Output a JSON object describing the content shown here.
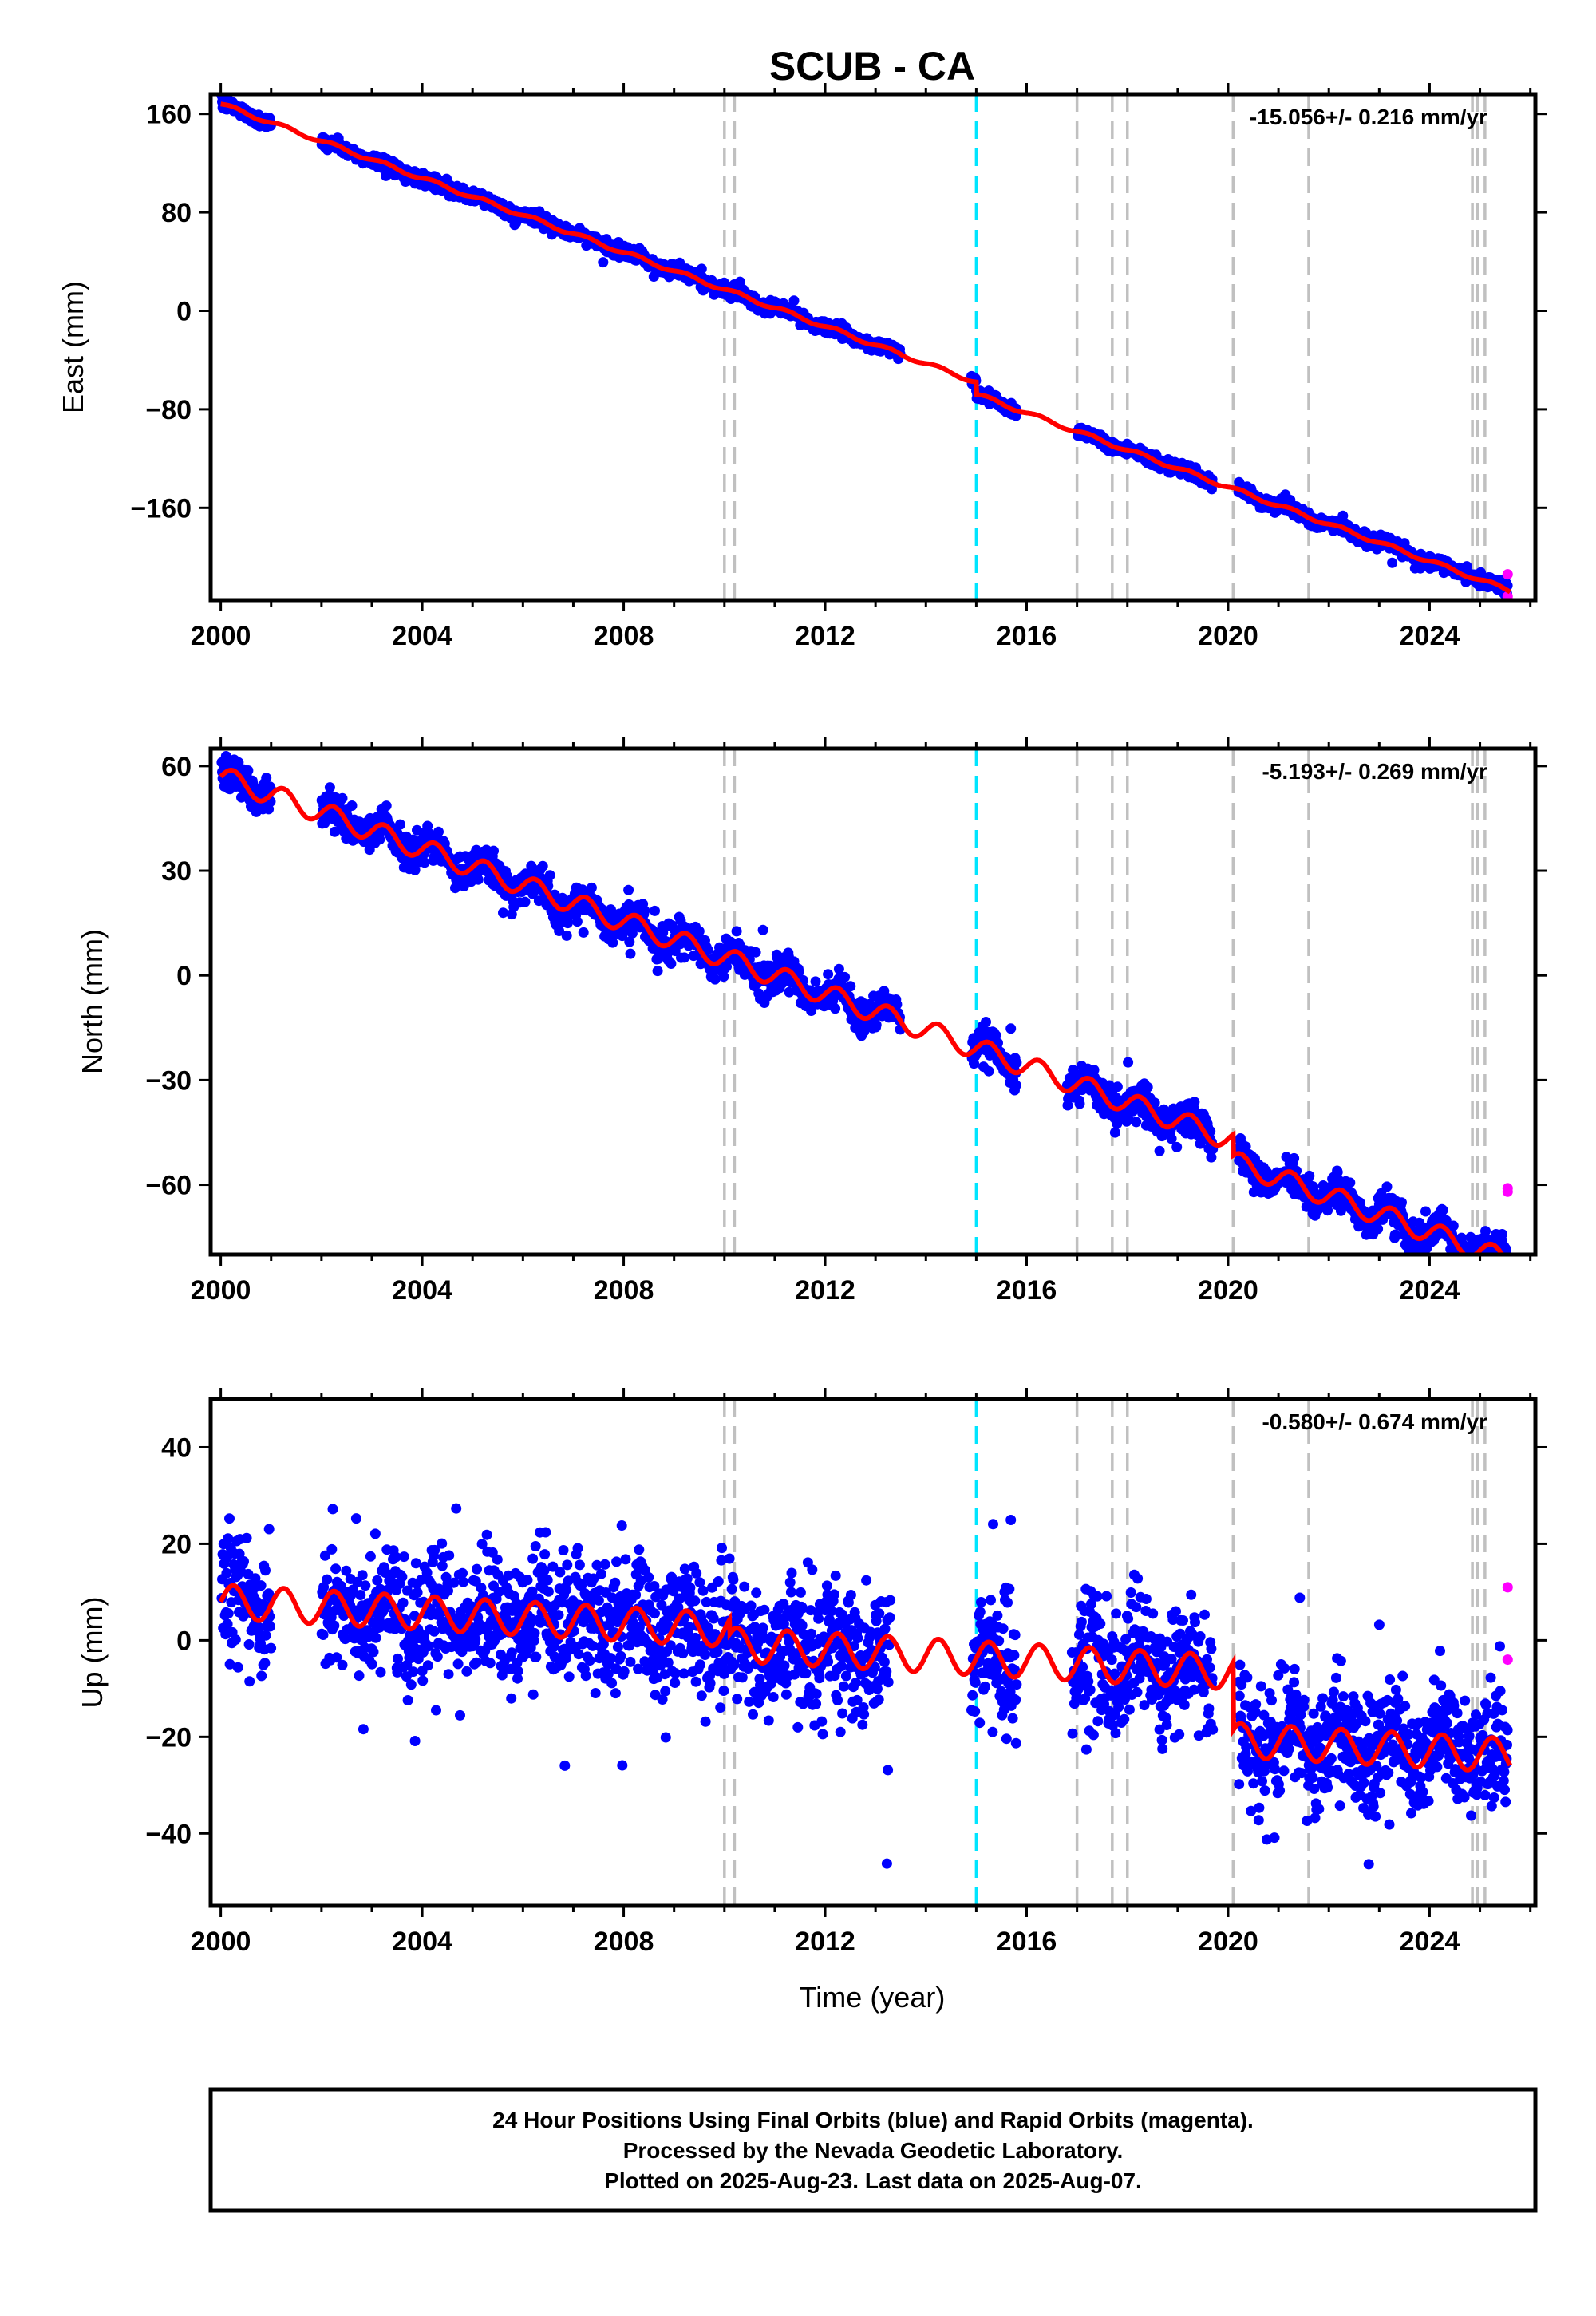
{
  "title": "SCUB - CA",
  "footer": {
    "line1": "24 Hour Positions Using Final Orbits (blue) and Rapid Orbits (magenta).",
    "line2": "Processed by the Nevada Geodetic Laboratory.",
    "line3": "Plotted on 2025-Aug-23. Last data on 2025-Aug-07."
  },
  "colors": {
    "final_points": "#0000ff",
    "rapid_points": "#ff00ff",
    "model_line": "#ff0000",
    "event_line": "#c0c0c0",
    "equipment_line": "#00e5ff"
  },
  "chart_data": [
    {
      "type": "scatter",
      "ylabel": "East (mm)",
      "xlabel": "",
      "rate_label": "-15.056+/- 0.216 mm/yr",
      "xlim": [
        1999.8,
        2026.1
      ],
      "ylim": [
        -235,
        176
      ],
      "xticks": [
        "2000",
        "2004",
        "2008",
        "2012",
        "2016",
        "2020",
        "2024"
      ],
      "yticks": [
        "160",
        "80",
        "0",
        "−80",
        "−160"
      ],
      "ytick_values": [
        160,
        80,
        0,
        -80,
        -160
      ],
      "trend": {
        "start_value": 168,
        "rate": -15.056
      },
      "seasonal_amplitude": 1.5,
      "noise_sd": 2.5,
      "offsets": [
        {
          "x": 2015.0,
          "dy": -10
        }
      ],
      "data_gaps": [
        [
          2001.0,
          2002.0
        ],
        [
          2013.5,
          2014.9
        ],
        [
          2015.8,
          2017.0
        ],
        [
          2019.7,
          2020.2
        ]
      ],
      "rapid_points": [
        {
          "x": 2025.55,
          "y": -214
        },
        {
          "x": 2025.55,
          "y": -232
        }
      ],
      "event_lines": [
        2010.0,
        2010.2,
        2017.0,
        2017.7,
        2018.0,
        2020.1,
        2021.6,
        2024.85,
        2024.95,
        2025.1
      ],
      "equipment_lines": [
        2015.0
      ],
      "grid": false
    },
    {
      "type": "scatter",
      "ylabel": "North (mm)",
      "xlabel": "",
      "rate_label": "-5.193+/- 0.269 mm/yr",
      "xlim": [
        1999.8,
        2026.1
      ],
      "ylim": [
        -80,
        65
      ],
      "xticks": [
        "2000",
        "2004",
        "2008",
        "2012",
        "2016",
        "2020",
        "2024"
      ],
      "yticks": [
        "60",
        "30",
        "0",
        "−30",
        "−60"
      ],
      "ytick_values": [
        60,
        30,
        0,
        -30,
        -60
      ],
      "trend": {
        "start_value": 57,
        "rate": -5.193
      },
      "seasonal_amplitude": 3,
      "noise_sd": 2.4,
      "offsets": [
        {
          "x": 2020.1,
          "dy": -6
        }
      ],
      "data_gaps": [
        [
          2001.0,
          2002.0
        ],
        [
          2013.5,
          2014.9
        ],
        [
          2015.8,
          2016.8
        ],
        [
          2019.7,
          2020.2
        ]
      ],
      "rapid_points": [
        {
          "x": 2025.55,
          "y": -61
        },
        {
          "x": 2025.55,
          "y": -62
        }
      ],
      "event_lines": [
        2010.0,
        2010.2,
        2017.0,
        2017.7,
        2018.0,
        2020.1,
        2021.6,
        2024.85,
        2024.95,
        2025.1
      ],
      "equipment_lines": [
        2015.0
      ],
      "grid": false
    },
    {
      "type": "scatter",
      "ylabel": "Up (mm)",
      "xlabel": "Time (year)",
      "rate_label": "-0.580+/- 0.674 mm/yr",
      "xlim": [
        1999.8,
        2026.1
      ],
      "ylim": [
        -55,
        50
      ],
      "xticks": [
        "2000",
        "2004",
        "2008",
        "2012",
        "2016",
        "2020",
        "2024"
      ],
      "yticks": [
        "40",
        "20",
        "0",
        "−20",
        "−40"
      ],
      "ytick_values": [
        40,
        20,
        0,
        -20,
        -40
      ],
      "trend": {
        "start_value": 8,
        "rate": -0.58
      },
      "seasonal_amplitude": 3.5,
      "noise_sd": 6.5,
      "offsets": [
        {
          "x": 2010.1,
          "dy": -3
        },
        {
          "x": 2020.1,
          "dy": -14
        }
      ],
      "data_gaps": [
        [
          2001.0,
          2002.0
        ],
        [
          2013.3,
          2014.9
        ],
        [
          2015.8,
          2016.9
        ],
        [
          2019.7,
          2020.2
        ]
      ],
      "rapid_points": [
        {
          "x": 2025.55,
          "y": 11
        },
        {
          "x": 2025.55,
          "y": -4
        }
      ],
      "event_lines": [
        2010.0,
        2010.2,
        2017.0,
        2017.7,
        2018.0,
        2020.1,
        2021.6,
        2024.85,
        2024.95,
        2025.1
      ],
      "equipment_lines": [
        2015.0
      ],
      "grid": false
    }
  ]
}
